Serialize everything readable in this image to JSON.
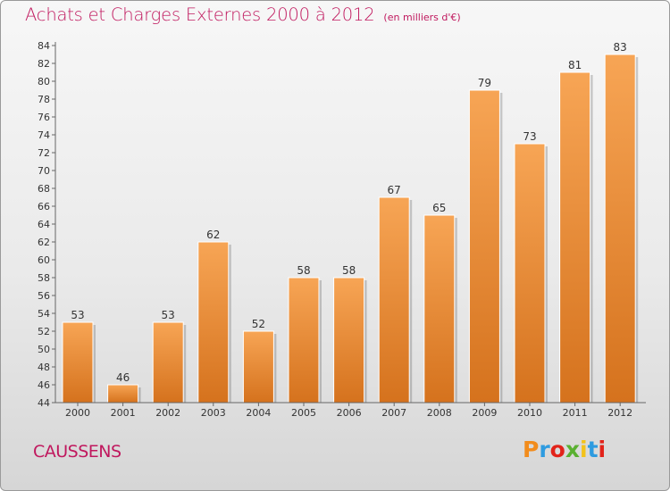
{
  "title": "Achats et Charges Externes 2000 à 2012",
  "subtitle": "(en milliers d'€)",
  "commune": "CAUSSENS",
  "logo": "Proxiti",
  "colors": {
    "title": "#c0185e",
    "bar_top": "#f7a555",
    "bar_bottom": "#d5721d",
    "logo_letters": [
      "#f28c1c",
      "#2e9be0",
      "#e2231a",
      "#5ab031",
      "#f3c21a",
      "#2e9be0",
      "#e2231a"
    ]
  },
  "chart_data": {
    "type": "bar",
    "title": "Achats et Charges Externes 2000 à 2012",
    "subtitle": "(en milliers d'€)",
    "xlabel": "",
    "ylabel": "",
    "categories": [
      "2000",
      "2001",
      "2002",
      "2003",
      "2004",
      "2005",
      "2006",
      "2007",
      "2008",
      "2009",
      "2010",
      "2011",
      "2012"
    ],
    "values": [
      53,
      46,
      53,
      62,
      52,
      58,
      58,
      67,
      65,
      79,
      73,
      81,
      83
    ],
    "ylim": [
      44,
      84
    ],
    "yticks": [
      44,
      46,
      48,
      50,
      52,
      54,
      56,
      58,
      60,
      62,
      64,
      66,
      68,
      70,
      72,
      74,
      76,
      78,
      80,
      82,
      84
    ],
    "grid": false,
    "legend": "none"
  }
}
